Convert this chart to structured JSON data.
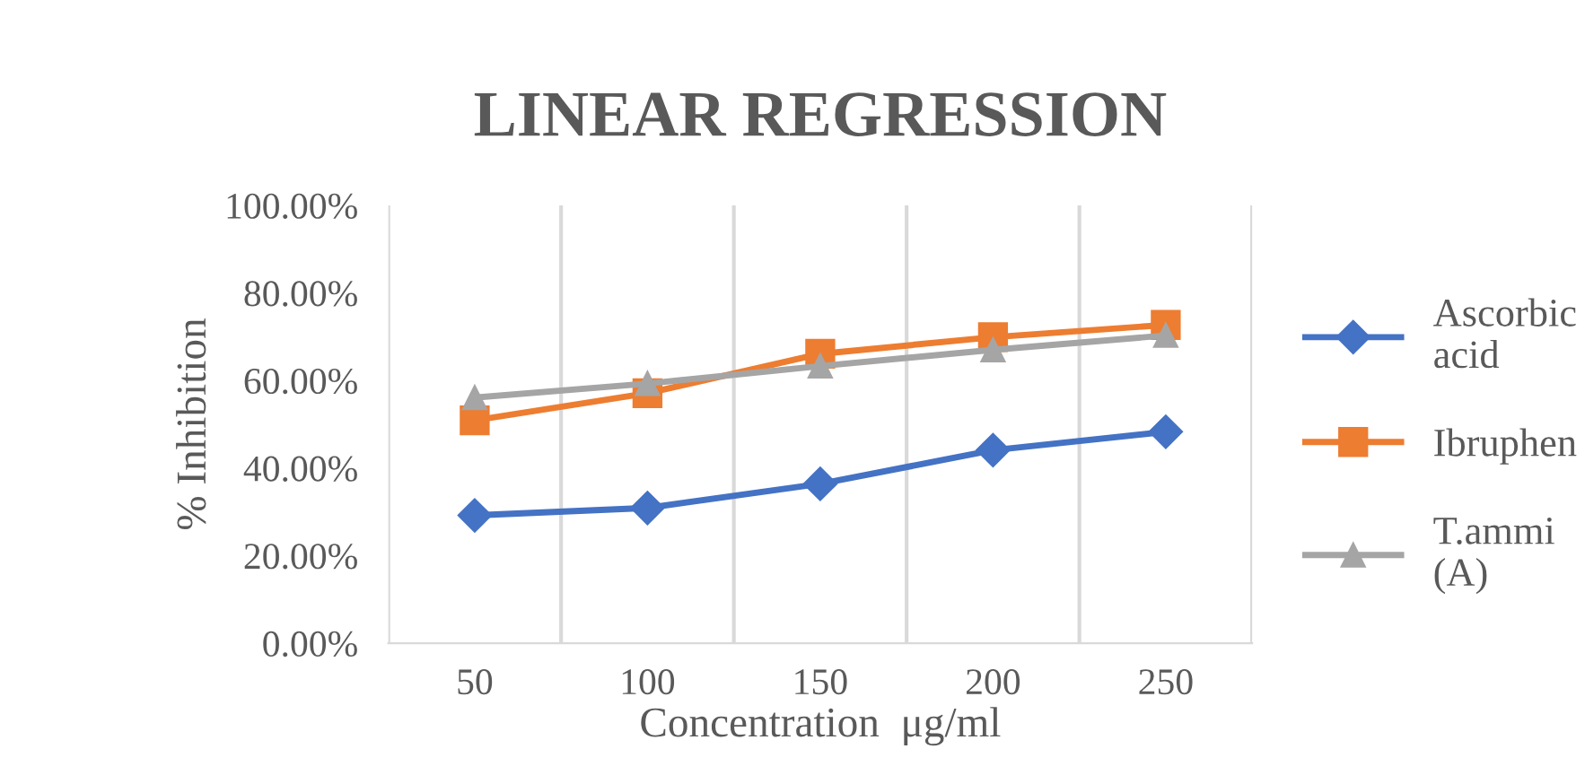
{
  "chart_data": {
    "type": "line",
    "title": "LINEAR REGRESSION",
    "xlabel": "Concentration  μg/ml",
    "ylabel": "% Inhibition",
    "categories": [
      "50",
      "100",
      "150",
      "200",
      "250"
    ],
    "series": [
      {
        "name": "Ascorbic\nacid",
        "color": "#4472c4",
        "marker": "diamond",
        "values": [
          29.2,
          30.9,
          36.4,
          44.1,
          48.3
        ]
      },
      {
        "name": "Ibruphen",
        "color": "#ed7d31",
        "marker": "square",
        "values": [
          50.9,
          57.1,
          66.1,
          69.9,
          72.7
        ]
      },
      {
        "name": "T.ammi\n(A)",
        "color": "#a5a5a5",
        "marker": "triangle",
        "values": [
          56.1,
          59.3,
          63.3,
          67.0,
          70.3
        ]
      }
    ],
    "ylim": [
      0,
      100
    ],
    "yticks": [
      {
        "value": 0,
        "label": "0.00%"
      },
      {
        "value": 20,
        "label": "20.00%"
      },
      {
        "value": 40,
        "label": "40.00%"
      },
      {
        "value": 60,
        "label": "60.00%"
      },
      {
        "value": 80,
        "label": "80.00%"
      },
      {
        "value": 100,
        "label": "100.00%"
      }
    ],
    "grid": "x",
    "legend": "right",
    "line_style": "solid"
  }
}
